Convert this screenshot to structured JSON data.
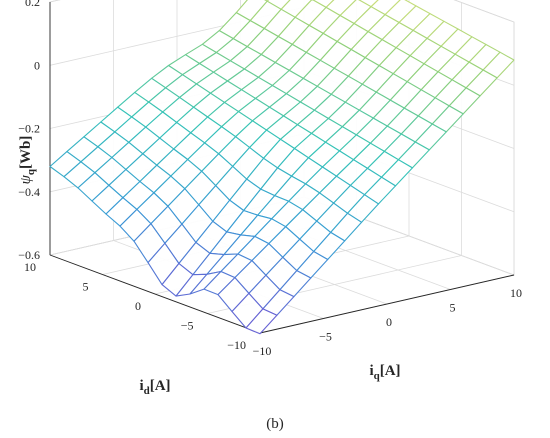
{
  "panel_label": "(b)",
  "chart_data": {
    "type": "surface",
    "xlabel": {
      "base": "i",
      "sub": "d",
      "unit": "[A]"
    },
    "ylabel": {
      "base": "i",
      "sub": "q",
      "unit": "[A]"
    },
    "zlabel": {
      "base": "ψ",
      "sub": "q",
      "unit": "[Wb]"
    },
    "xlim": [
      -10,
      10
    ],
    "ylim": [
      -10,
      10
    ],
    "zlim": [
      -0.6,
      0.2
    ],
    "x_ticks": [
      10,
      5,
      0,
      -5,
      -10
    ],
    "x_tick_labels": [
      "10",
      "5",
      "0",
      "−5",
      "−10"
    ],
    "y_ticks": [
      -10,
      -5,
      0,
      5,
      10
    ],
    "y_tick_labels": [
      "−10",
      "−5",
      "0",
      "5",
      "10"
    ],
    "z_ticks": [
      0.2,
      0,
      -0.2,
      -0.4,
      -0.6
    ],
    "z_tick_labels": [
      "0.2",
      "0",
      "−0.2",
      "−0.4",
      "−0.6"
    ],
    "grid": true,
    "colormap": [
      "#6c5bd4",
      "#3a9ad6",
      "#35c3b8",
      "#8fd07a",
      "#e8e57a"
    ],
    "mesh_x": [
      -10,
      -8.667,
      -7.333,
      -6,
      -4.667,
      -3.333,
      -2,
      -0.667,
      0.667,
      2,
      3.333,
      4.667,
      6,
      7.333,
      8.667,
      10
    ],
    "mesh_y": [
      -10,
      -8.667,
      -7.333,
      -6,
      -4.667,
      -3.333,
      -2,
      -0.667,
      0.667,
      2,
      3.333,
      4.667,
      6,
      7.333,
      8.667,
      10
    ],
    "corner_values": {
      "id_10_iq_-10": -0.32,
      "id_-10_iq_-10": -0.59,
      "id_-10_iq_10": 0.08,
      "id_10_iq_10": 0.2
    }
  }
}
